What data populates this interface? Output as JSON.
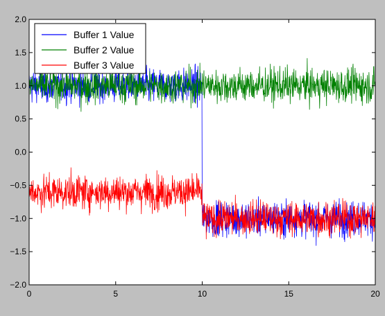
{
  "chart_data": {
    "type": "line",
    "title": "",
    "xlabel": "",
    "ylabel": "",
    "xlim": [
      0,
      20
    ],
    "ylim": [
      -2.0,
      2.0
    ],
    "x_ticks": [
      0,
      5,
      10,
      15,
      20
    ],
    "x_tick_labels": [
      "0",
      "5",
      "10",
      "15",
      "20"
    ],
    "y_ticks": [
      -2.0,
      -1.5,
      -1.0,
      -0.5,
      0.0,
      0.5,
      1.0,
      1.5,
      2.0
    ],
    "y_tick_labels": [
      "−2.0",
      "−1.5",
      "−1.0",
      "−0.5",
      "0.0",
      "0.5",
      "1.0",
      "1.5",
      "2.0"
    ],
    "grid": false,
    "legend_placement": "top-left",
    "series": [
      {
        "name": "Buffer 1 Value",
        "color": "#0000ff",
        "segments": [
          {
            "x_start": 0,
            "x_end": 10,
            "mean": 1.0,
            "spread": 0.55
          },
          {
            "x_start": 10,
            "x_end": 20,
            "mean": -1.0,
            "spread": 0.55
          }
        ]
      },
      {
        "name": "Buffer 2 Value",
        "color": "#008000",
        "segments": [
          {
            "x_start": 0,
            "x_end": 20,
            "mean": 1.0,
            "spread": 0.55
          }
        ]
      },
      {
        "name": "Buffer 3 Value",
        "color": "#ff0000",
        "segments": [
          {
            "x_start": 0,
            "x_end": 10,
            "mean": -0.6,
            "spread": 0.55
          },
          {
            "x_start": 10,
            "x_end": 20,
            "mean": -1.0,
            "spread": 0.55
          }
        ]
      }
    ]
  }
}
